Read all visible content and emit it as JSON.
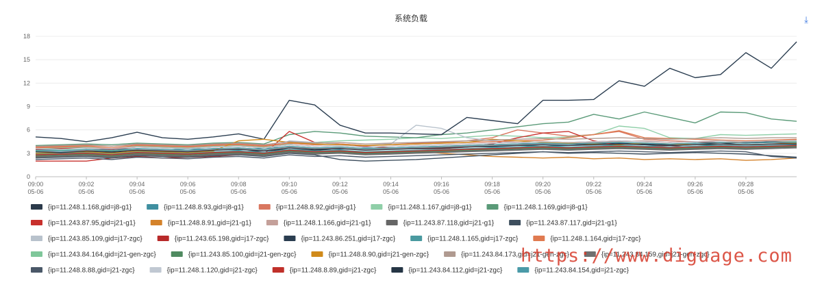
{
  "download_icon": "download-arrow-icon",
  "watermark_url": "https://www.diguage.com",
  "chart_data": {
    "type": "line",
    "title": "系统负载",
    "xlabel": "",
    "ylabel": "",
    "ylim": [
      0,
      18
    ],
    "yticks": [
      0,
      3,
      6,
      9,
      12,
      15,
      18
    ],
    "grid": true,
    "legend_position": "bottom",
    "x": [
      "09:00",
      "09:01",
      "09:02",
      "09:03",
      "09:04",
      "09:05",
      "09:06",
      "09:07",
      "09:08",
      "09:09",
      "09:10",
      "09:11",
      "09:12",
      "09:13",
      "09:14",
      "09:15",
      "09:16",
      "09:17",
      "09:18",
      "09:19",
      "09:20",
      "09:21",
      "09:22",
      "09:23",
      "09:24",
      "09:25",
      "09:26",
      "09:27",
      "09:28",
      "09:29",
      "09:30"
    ],
    "xticks": [
      {
        "time": "09:00",
        "date": "05-06"
      },
      {
        "time": "09:02",
        "date": "05-06"
      },
      {
        "time": "09:04",
        "date": "05-06"
      },
      {
        "time": "09:06",
        "date": "05-06"
      },
      {
        "time": "09:08",
        "date": "05-06"
      },
      {
        "time": "09:10",
        "date": "05-06"
      },
      {
        "time": "09:12",
        "date": "05-06"
      },
      {
        "time": "09:14",
        "date": "05-06"
      },
      {
        "time": "09:16",
        "date": "05-06"
      },
      {
        "time": "09:18",
        "date": "05-06"
      },
      {
        "time": "09:20",
        "date": "05-06"
      },
      {
        "time": "09:22",
        "date": "05-06"
      },
      {
        "time": "09:24",
        "date": "05-06"
      },
      {
        "time": "09:26",
        "date": "05-06"
      },
      {
        "time": "09:28",
        "date": "05-06"
      }
    ],
    "series": [
      {
        "name": "{ip=11.248.1.168,gid=j8-g1}",
        "color": "#2b3a4a",
        "values": [
          3.0,
          3.1,
          3.2,
          3.1,
          3.3,
          3.2,
          3.0,
          3.1,
          3.2,
          3.3,
          3.5,
          3.4,
          3.6,
          3.5,
          3.7,
          3.8,
          3.9,
          4.0,
          4.1,
          4.2,
          4.3,
          4.1,
          4.2,
          4.3,
          4.2,
          4.1,
          4.3,
          4.2,
          4.4,
          4.5,
          4.6
        ]
      },
      {
        "name": "{ip=11.248.8.93,gid=j8-g1}",
        "color": "#3f8fa0",
        "values": [
          3.4,
          3.5,
          3.3,
          3.6,
          3.5,
          3.4,
          3.6,
          3.5,
          3.4,
          3.7,
          3.8,
          3.6,
          3.5,
          3.7,
          3.6,
          3.8,
          3.7,
          3.9,
          3.8,
          4.0,
          3.9,
          4.0,
          4.1,
          4.0,
          3.9,
          4.0,
          4.1,
          4.0,
          3.9,
          4.0,
          4.1
        ]
      },
      {
        "name": "{ip=11.248.8.92,gid=j8-g1}",
        "color": "#d97760",
        "values": [
          3.8,
          3.9,
          4.0,
          3.9,
          4.1,
          4.0,
          3.9,
          4.1,
          4.2,
          4.0,
          4.3,
          4.1,
          4.2,
          4.0,
          4.1,
          4.3,
          4.4,
          4.6,
          5.0,
          6.0,
          5.6,
          5.2,
          5.4,
          5.8,
          4.8,
          4.6,
          4.5,
          4.4,
          4.5,
          4.6,
          4.5
        ]
      },
      {
        "name": "{ip=11.248.1.167,gid=j8-g1}",
        "color": "#8fcfa8",
        "values": [
          3.6,
          3.7,
          3.8,
          3.6,
          3.9,
          3.8,
          3.7,
          3.9,
          4.0,
          3.8,
          4.2,
          4.4,
          4.6,
          4.7,
          4.8,
          5.0,
          4.9,
          5.1,
          5.3,
          5.2,
          5.0,
          5.1,
          5.4,
          6.5,
          6.2,
          5.0,
          4.9,
          5.4,
          5.3,
          5.4,
          5.5
        ]
      },
      {
        "name": "{ip=11.248.1.169,gid=j8-g1}",
        "color": "#5a9a78",
        "values": [
          4.0,
          4.1,
          4.2,
          4.1,
          4.3,
          4.2,
          4.1,
          4.3,
          4.4,
          4.2,
          5.4,
          5.8,
          5.6,
          5.2,
          5.1,
          5.0,
          5.4,
          5.6,
          6.0,
          6.4,
          6.8,
          7.0,
          8.0,
          7.4,
          8.3,
          7.6,
          6.9,
          8.3,
          8.2,
          7.4,
          7.1
        ]
      },
      {
        "name": "{ip=11.243.87.95,gid=j21-g1}",
        "color": "#c8302c",
        "values": [
          2.0,
          2.0,
          2.0,
          2.4,
          2.6,
          2.4,
          2.5,
          2.6,
          2.8,
          2.9,
          5.8,
          4.4,
          4.2,
          3.9,
          3.7,
          3.6,
          3.6,
          3.8,
          4.2,
          5.0,
          5.6,
          5.8,
          4.6,
          4.0,
          3.8,
          4.0,
          3.7,
          3.8,
          3.6,
          3.8,
          3.7
        ]
      },
      {
        "name": "{ip=11.248.8.91,gid=j21-g1}",
        "color": "#d4822a",
        "values": [
          2.8,
          2.9,
          3.0,
          2.8,
          3.1,
          3.0,
          2.9,
          3.1,
          3.2,
          3.0,
          3.4,
          3.2,
          3.3,
          3.1,
          3.2,
          3.3,
          3.0,
          2.8,
          2.6,
          2.5,
          2.4,
          2.5,
          2.3,
          2.4,
          2.2,
          2.3,
          2.2,
          2.3,
          2.1,
          2.2,
          2.4
        ]
      },
      {
        "name": "{ip=11.248.1.166,gid=j21-g1}",
        "color": "#c4a09a",
        "values": [
          3.2,
          3.3,
          3.4,
          3.2,
          3.5,
          3.4,
          3.3,
          3.5,
          3.6,
          3.4,
          3.8,
          3.6,
          3.7,
          3.5,
          3.6,
          3.7,
          3.8,
          3.9,
          4.0,
          4.1,
          4.2,
          4.3,
          4.4,
          4.5,
          4.6,
          4.4,
          4.5,
          4.6,
          4.5,
          4.6,
          4.7
        ]
      },
      {
        "name": "{ip=11.243.87.118,gid=j21-g1}",
        "color": "#666666",
        "values": [
          2.6,
          2.7,
          2.8,
          2.6,
          2.9,
          2.8,
          2.7,
          2.9,
          3.0,
          2.8,
          3.2,
          3.0,
          3.1,
          2.9,
          3.0,
          3.1,
          3.2,
          3.3,
          3.4,
          3.5,
          3.6,
          3.5,
          3.6,
          3.7,
          3.6,
          3.5,
          3.6,
          3.7,
          3.6,
          3.7,
          3.8
        ]
      },
      {
        "name": "{ip=11.243.87.117,gid=j21-g1}",
        "color": "#3e4f5e",
        "values": [
          2.4,
          2.5,
          2.6,
          2.4,
          2.7,
          2.6,
          2.5,
          2.7,
          2.8,
          2.6,
          3.0,
          2.8,
          2.2,
          2.0,
          2.1,
          2.2,
          2.4,
          2.6,
          2.8,
          3.0,
          3.2,
          3.0,
          3.1,
          3.0,
          2.9,
          3.0,
          3.1,
          3.0,
          2.9,
          2.7,
          2.5
        ]
      },
      {
        "name": "{ip=11.243.85.109,gid=j17-zgc}",
        "color": "#b8c2cc",
        "values": [
          3.1,
          3.2,
          3.3,
          3.2,
          3.4,
          3.3,
          3.2,
          3.4,
          3.5,
          3.3,
          4.6,
          4.4,
          4.2,
          4.0,
          4.2,
          6.6,
          6.2,
          5.0,
          4.6,
          4.4,
          4.2,
          4.1,
          4.0,
          4.2,
          4.1,
          4.0,
          4.2,
          4.1,
          4.0,
          4.1,
          4.2
        ]
      },
      {
        "name": "{ip=11.243.65.198,gid=j17-zgc}",
        "color": "#b82a2a",
        "values": [
          3.5,
          3.6,
          3.7,
          3.5,
          3.8,
          3.7,
          3.6,
          3.8,
          3.9,
          3.7,
          4.1,
          3.9,
          4.0,
          3.8,
          3.9,
          4.0,
          4.1,
          4.2,
          4.3,
          4.4,
          4.5,
          4.4,
          4.5,
          4.6,
          4.5,
          4.4,
          4.5,
          4.4,
          4.3,
          4.4,
          4.3
        ]
      },
      {
        "name": "{ip=11.243.86.251,gid=j17-zgc}",
        "color": "#2a3d50",
        "values": [
          5.1,
          4.9,
          4.5,
          5.0,
          5.7,
          5.0,
          4.8,
          5.1,
          5.5,
          4.8,
          9.8,
          9.2,
          6.6,
          5.6,
          5.6,
          5.5,
          5.4,
          7.6,
          7.2,
          6.8,
          9.8,
          9.8,
          9.9,
          12.3,
          11.6,
          13.9,
          12.7,
          13.1,
          15.9,
          13.9,
          17.3
        ]
      },
      {
        "name": "{ip=11.248.1.165,gid=j17-zgc}",
        "color": "#4a9aa0",
        "values": [
          2.9,
          3.0,
          3.1,
          2.9,
          3.2,
          3.1,
          3.0,
          3.2,
          3.3,
          3.1,
          3.5,
          3.3,
          3.4,
          3.2,
          3.3,
          3.4,
          3.5,
          3.6,
          3.7,
          3.8,
          3.9,
          3.8,
          3.9,
          4.0,
          3.9,
          3.8,
          3.9,
          4.0,
          3.9,
          4.0,
          4.0
        ]
      },
      {
        "name": "{ip=11.248.1.164,gid=j17-zgc}",
        "color": "#e07a50",
        "values": [
          3.7,
          3.8,
          3.9,
          3.7,
          4.0,
          3.9,
          3.8,
          4.0,
          4.1,
          3.9,
          4.3,
          4.1,
          4.2,
          4.0,
          4.1,
          4.2,
          4.3,
          4.4,
          4.5,
          4.6,
          4.7,
          5.0,
          5.4,
          5.9,
          5.0,
          4.9,
          4.8,
          4.7,
          4.6,
          4.7,
          4.8
        ]
      },
      {
        "name": "{ip=11.243.84.164,gid=j21-gen-zgc}",
        "color": "#7fc79a",
        "values": [
          3.3,
          3.4,
          3.5,
          3.3,
          3.6,
          3.5,
          3.4,
          3.6,
          3.7,
          3.5,
          3.9,
          3.7,
          3.8,
          3.6,
          3.7,
          3.8,
          3.9,
          4.0,
          4.1,
          4.2,
          4.3,
          4.2,
          4.3,
          4.4,
          4.3,
          4.2,
          4.3,
          4.4,
          4.3,
          4.4,
          4.5
        ]
      },
      {
        "name": "{ip=11.243.85.100,gid=j21-gen-zgc}",
        "color": "#4f8a60",
        "values": [
          2.7,
          2.8,
          2.9,
          2.7,
          3.0,
          2.9,
          2.8,
          3.0,
          3.1,
          2.9,
          3.3,
          3.1,
          3.2,
          3.0,
          3.1,
          3.2,
          3.3,
          3.4,
          3.5,
          3.6,
          3.7,
          3.6,
          3.7,
          3.8,
          3.7,
          3.6,
          3.7,
          3.8,
          3.7,
          3.8,
          3.9
        ]
      },
      {
        "name": "{ip=11.248.8.90,gid=j21-gen-zgc}",
        "color": "#d08a1a",
        "values": [
          3.0,
          3.1,
          3.2,
          3.0,
          3.3,
          3.2,
          3.1,
          3.3,
          4.6,
          4.8,
          4.4,
          4.2,
          4.1,
          4.0,
          4.1,
          4.2,
          4.3,
          4.4,
          4.8,
          4.6,
          4.4,
          4.3,
          4.2,
          4.1,
          4.3,
          4.2,
          4.1,
          4.2,
          4.1,
          4.2,
          4.3
        ]
      },
      {
        "name": "{ip=11.243.84.173,gid=j21-gen-zgc}",
        "color": "#b09a90",
        "values": [
          3.9,
          4.0,
          4.1,
          3.9,
          4.2,
          4.1,
          4.0,
          4.2,
          4.3,
          4.1,
          4.5,
          4.3,
          4.4,
          4.2,
          4.3,
          4.4,
          4.5,
          4.6,
          4.7,
          4.8,
          4.9,
          4.8,
          4.9,
          5.0,
          4.9,
          4.8,
          4.9,
          5.0,
          4.9,
          5.0,
          5.0
        ]
      },
      {
        "name": "{ip=11.243.84.159,gid=j21-gen-zgc}",
        "color": "#707070",
        "values": [
          2.5,
          2.6,
          2.7,
          2.5,
          2.8,
          2.7,
          2.6,
          2.8,
          2.9,
          2.7,
          3.1,
          2.9,
          3.0,
          2.8,
          2.9,
          3.0,
          3.1,
          3.2,
          3.3,
          3.4,
          3.5,
          3.4,
          3.5,
          3.6,
          3.5,
          3.4,
          3.5,
          3.6,
          3.5,
          3.6,
          3.7
        ]
      },
      {
        "name": "{ip=11.248.8.88,gid=j21-zgc}",
        "color": "#4a5868",
        "values": [
          2.2,
          2.3,
          2.4,
          2.2,
          2.5,
          2.4,
          2.3,
          2.5,
          2.6,
          2.4,
          2.8,
          2.6,
          2.7,
          2.5,
          2.6,
          2.7,
          2.8,
          2.9,
          3.0,
          3.1,
          3.2,
          3.1,
          3.2,
          3.3,
          3.2,
          3.1,
          3.2,
          3.3,
          3.2,
          2.6,
          2.4
        ]
      },
      {
        "name": "{ip=11.248.1.120,gid=j21-zgc}",
        "color": "#c0c8d2",
        "values": [
          3.6,
          3.5,
          3.7,
          3.6,
          3.8,
          3.7,
          3.6,
          3.8,
          3.9,
          3.7,
          4.1,
          3.9,
          4.0,
          3.8,
          3.9,
          4.0,
          4.1,
          4.2,
          4.3,
          4.4,
          4.5,
          4.4,
          4.5,
          4.6,
          4.5,
          4.4,
          4.5,
          4.6,
          4.5,
          4.6,
          4.6
        ]
      },
      {
        "name": "{ip=11.248.8.89,gid=j21-zgc}",
        "color": "#c0302a",
        "values": [
          2.8,
          2.9,
          3.0,
          2.8,
          3.1,
          3.0,
          2.9,
          3.1,
          3.2,
          3.0,
          3.4,
          3.2,
          3.3,
          3.1,
          3.2,
          3.3,
          3.4,
          3.5,
          3.6,
          3.7,
          3.8,
          3.7,
          3.8,
          3.9,
          3.8,
          3.7,
          3.8,
          3.9,
          3.8,
          3.9,
          4.0
        ]
      },
      {
        "name": "{ip=11.243.84.112,gid=j21-zgc}",
        "color": "#253545",
        "values": [
          3.2,
          3.1,
          3.3,
          3.2,
          3.4,
          3.3,
          3.2,
          3.4,
          3.5,
          3.3,
          3.7,
          3.5,
          3.6,
          3.4,
          3.5,
          3.6,
          3.7,
          3.8,
          3.9,
          4.0,
          4.1,
          4.0,
          4.1,
          4.2,
          4.1,
          4.0,
          4.1,
          4.2,
          4.1,
          4.2,
          4.2
        ]
      },
      {
        "name": "{ip=11.243.84.154,gid=j21-zgc}",
        "color": "#4a9aa8",
        "values": [
          3.4,
          3.3,
          3.5,
          3.4,
          3.6,
          3.5,
          3.4,
          3.6,
          3.7,
          3.5,
          3.9,
          3.7,
          3.8,
          3.6,
          3.7,
          3.8,
          3.9,
          4.0,
          4.1,
          4.2,
          4.3,
          4.2,
          4.3,
          4.4,
          4.3,
          4.2,
          4.3,
          4.4,
          4.3,
          4.4,
          4.4
        ]
      }
    ]
  }
}
